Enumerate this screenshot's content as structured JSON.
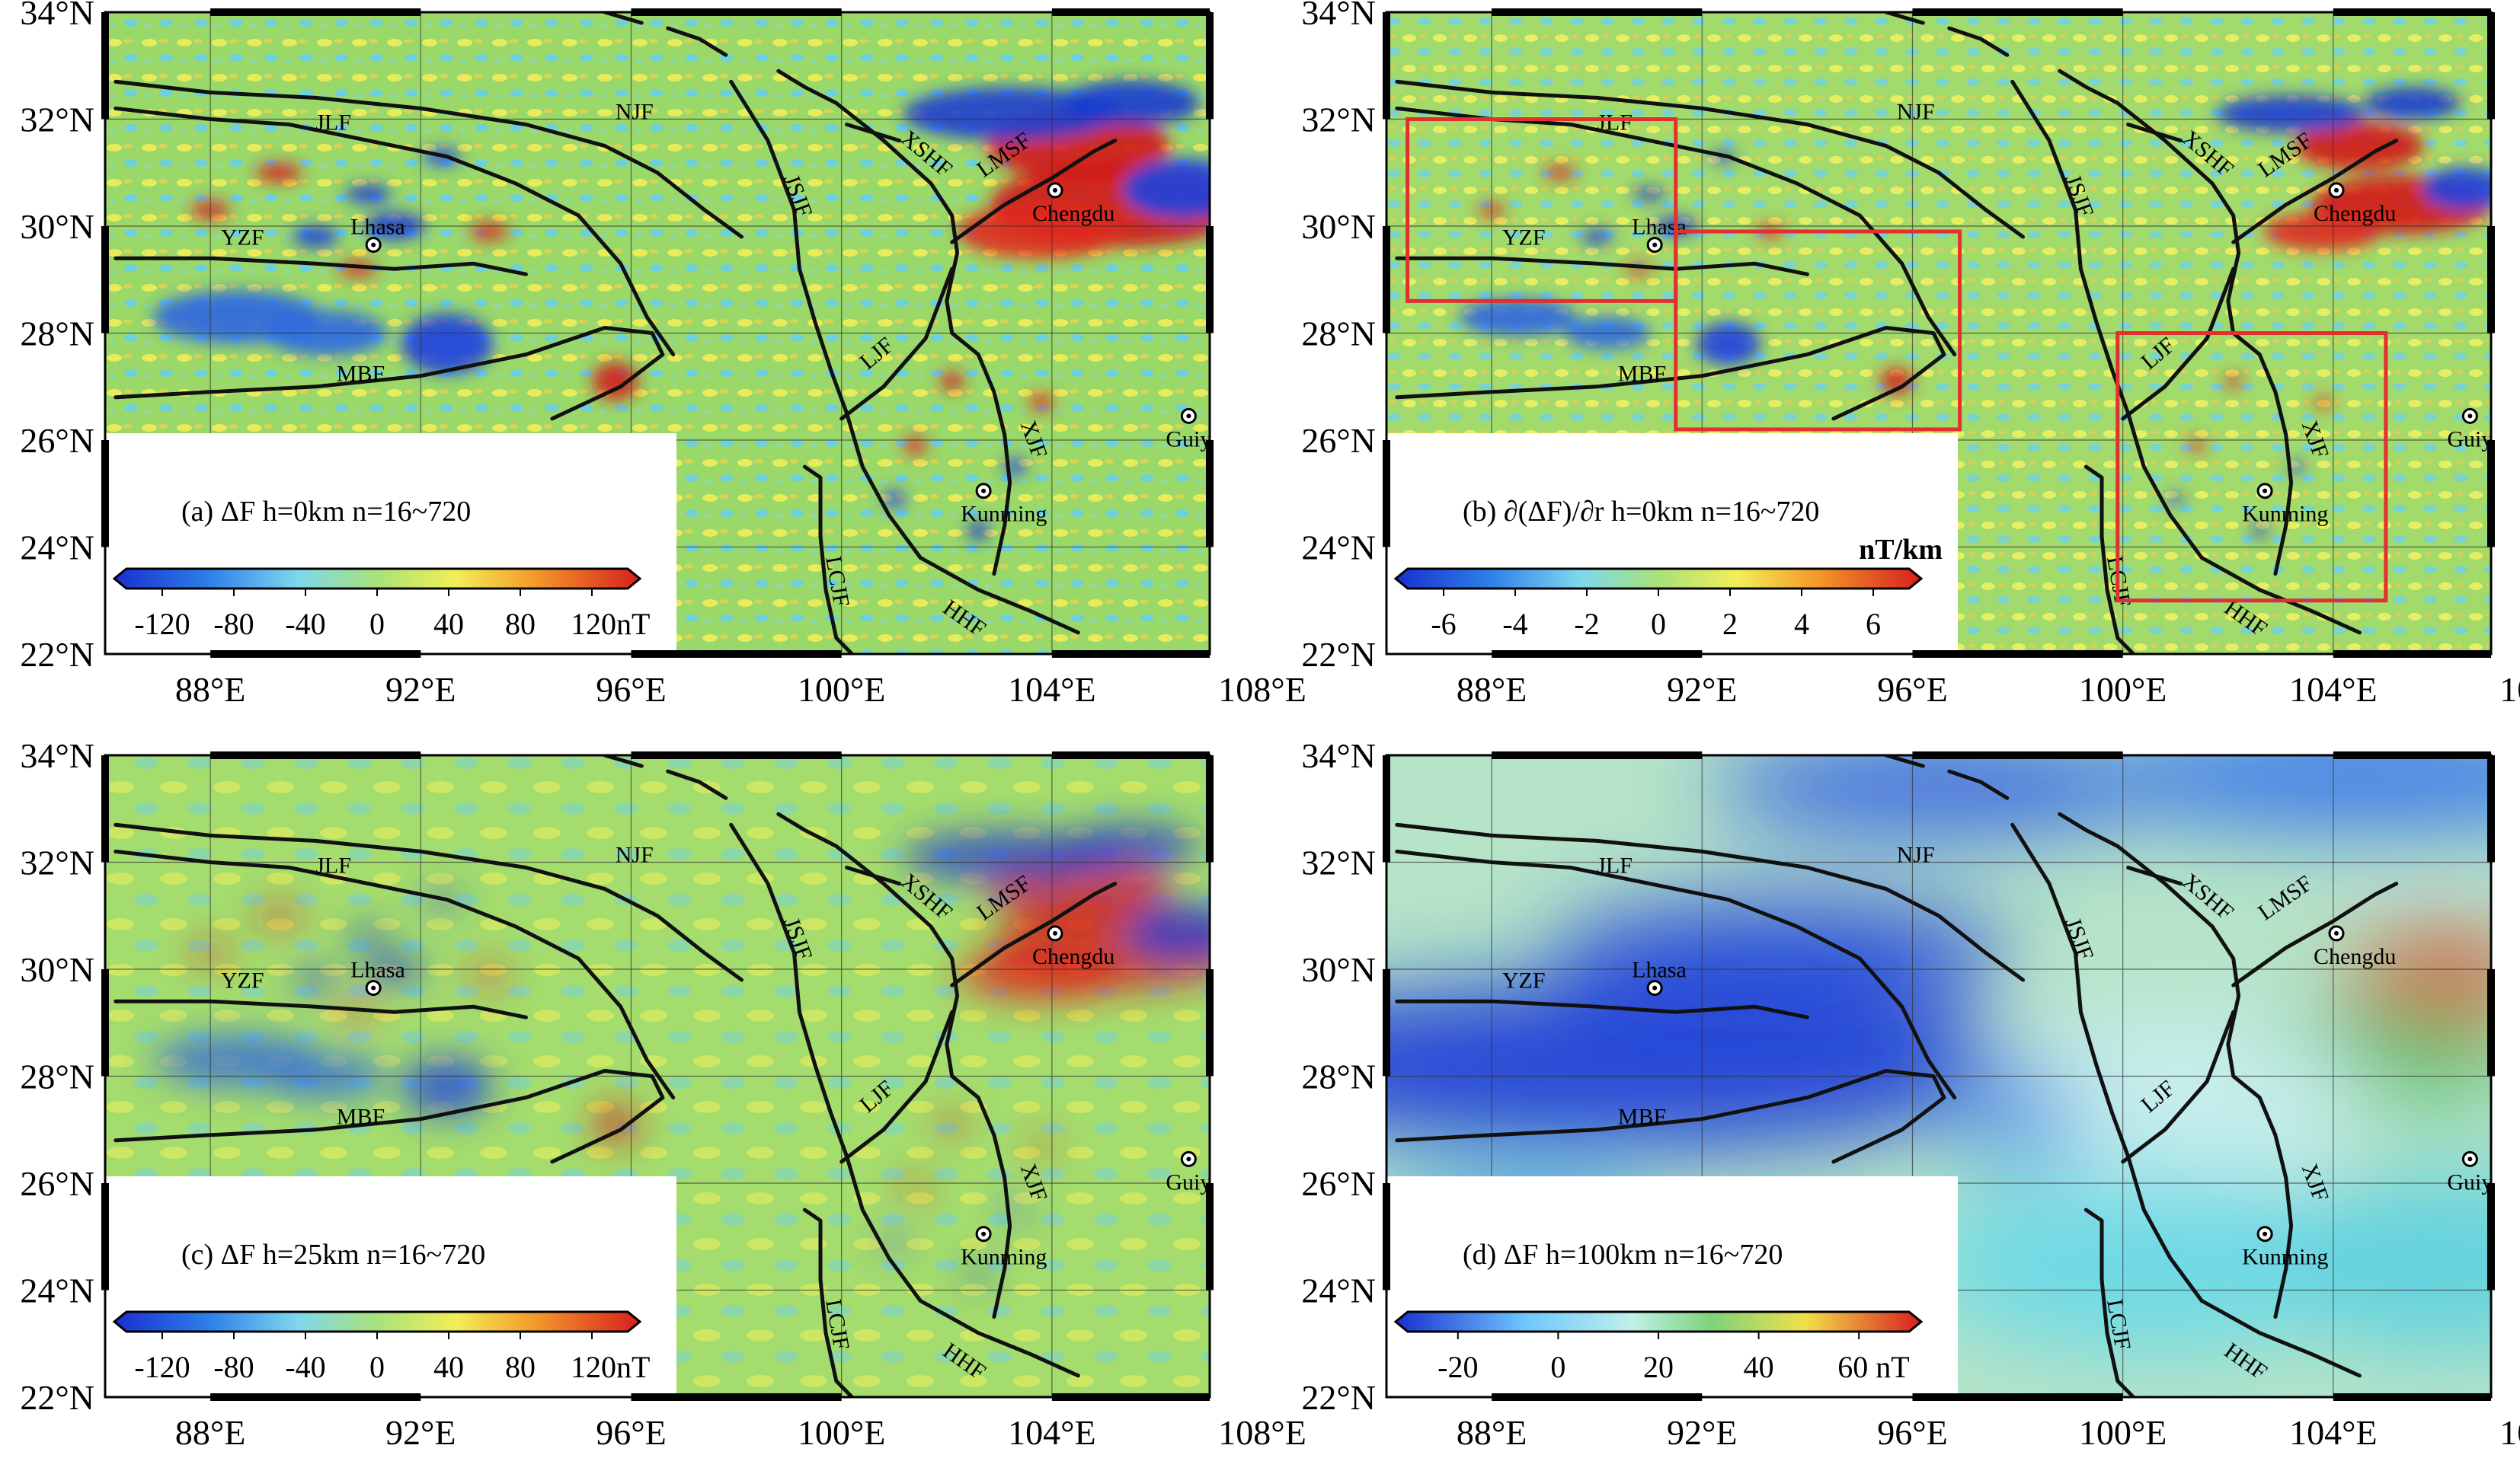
{
  "lat_labels": [
    "22°N",
    "24°N",
    "26°N",
    "28°N",
    "30°N",
    "32°N",
    "34°N"
  ],
  "lon_labels": [
    "88°E",
    "92°E",
    "96°E",
    "100°E",
    "104°E",
    "108°E"
  ],
  "lat_values": [
    22,
    24,
    26,
    28,
    30,
    32,
    34
  ],
  "lon_values": [
    88,
    92,
    96,
    100,
    104,
    108
  ],
  "extent": {
    "lon_min": 86,
    "lon_max": 107,
    "lat_min": 22,
    "lat_max": 34
  },
  "cities": [
    {
      "name": "Lhasa",
      "lon": 91.1,
      "lat": 29.65
    },
    {
      "name": "Chengdu",
      "lon": 104.06,
      "lat": 30.67
    },
    {
      "name": "Kunming",
      "lon": 102.7,
      "lat": 25.05
    },
    {
      "name": "Guiyang",
      "lon": 106.6,
      "lat": 26.45
    }
  ],
  "faults": [
    {
      "name": "JLF",
      "lon": 90.0,
      "lat": 31.8
    },
    {
      "name": "NJF",
      "lon": 95.7,
      "lat": 32.0
    },
    {
      "name": "YZF",
      "lon": 88.2,
      "lat": 29.65
    },
    {
      "name": "MBF",
      "lon": 90.4,
      "lat": 27.1
    },
    {
      "name": "JSJF",
      "lon": 98.9,
      "lat": 30.9
    },
    {
      "name": "XSHF",
      "lon": 101.1,
      "lat": 31.6
    },
    {
      "name": "LMSF",
      "lon": 102.7,
      "lat": 30.9
    },
    {
      "name": "LJF",
      "lon": 100.5,
      "lat": 27.3
    },
    {
      "name": "XJF",
      "lon": 103.4,
      "lat": 26.3
    },
    {
      "name": "LCJF",
      "lon": 99.7,
      "lat": 23.8
    },
    {
      "name": "HHF",
      "lon": 101.9,
      "lat": 22.8
    }
  ],
  "panels": [
    {
      "caption": "(a) ΔF  h=0km  n=16~720",
      "colorbar": {
        "ticks": [
          "-120",
          "-80",
          "-40",
          "0",
          "40",
          "80",
          "120nT"
        ],
        "unit": "",
        "min": -140,
        "max": 140,
        "tick_values": [
          -120,
          -80,
          -40,
          0,
          40,
          80,
          120
        ]
      },
      "boxes": []
    },
    {
      "caption": "(b) ∂(ΔF)/∂r  h=0km  n=16~720",
      "colorbar": {
        "ticks": [
          "-6",
          "-4",
          "-2",
          "0",
          "2",
          "4",
          "6"
        ],
        "unit": "nT/km",
        "min": -7,
        "max": 7,
        "tick_values": [
          -6,
          -4,
          -2,
          0,
          2,
          4,
          6
        ]
      },
      "boxes": [
        {
          "lon1": 86.4,
          "lat1": 28.6,
          "lon2": 91.5,
          "lat2": 32.0
        },
        {
          "lon1": 91.5,
          "lat1": 26.2,
          "lon2": 96.9,
          "lat2": 29.9
        },
        {
          "lon1": 99.9,
          "lat1": 23.0,
          "lon2": 105.0,
          "lat2": 28.0
        }
      ]
    },
    {
      "caption": "(c) ΔF  h=25km  n=16~720",
      "colorbar": {
        "ticks": [
          "-120",
          "-80",
          "-40",
          "0",
          "40",
          "80",
          "120nT"
        ],
        "unit": "",
        "min": -140,
        "max": 140,
        "tick_values": [
          -120,
          -80,
          -40,
          0,
          40,
          80,
          120
        ]
      },
      "boxes": []
    },
    {
      "caption": "(d) ΔF  h=100km  n=16~720",
      "colorbar": {
        "ticks": [
          "-20",
          "0",
          "20",
          "40",
          "60 nT"
        ],
        "unit": "",
        "min": -30,
        "max": 70,
        "tick_values": [
          -20,
          0,
          20,
          40,
          60
        ]
      },
      "boxes": []
    }
  ],
  "colors": {
    "fault_line": "#111111",
    "box": "#e03030",
    "frame": "#000000"
  }
}
